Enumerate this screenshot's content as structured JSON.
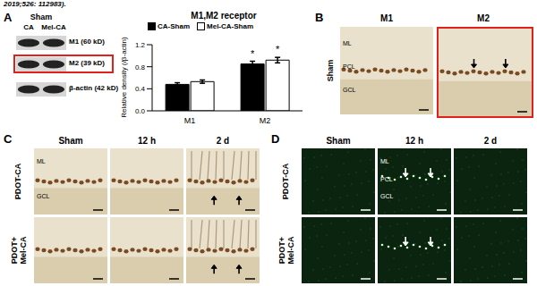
{
  "caption_fragment": "2019;526: 112983).",
  "panel_a": {
    "label": "A",
    "blot": {
      "group": "Sham",
      "lanes": [
        "CA",
        "Mel-CA"
      ],
      "bands": [
        "M1 (60 kD)",
        "M2 (39 kD)",
        "β-actin (42 kD)"
      ],
      "highlighted": "M2 (39 kD)"
    }
  },
  "chart_data": {
    "type": "bar",
    "title": "M1,M2 receptor",
    "y_label": "Relative density (/β-actin)",
    "categories": [
      "M1",
      "M2"
    ],
    "series": [
      {
        "name": "CA-Sham",
        "color": "#000000",
        "values": [
          0.48,
          0.85
        ],
        "errors": [
          0.03,
          0.05
        ]
      },
      {
        "name": "Mel-CA-Sham",
        "color": "#ffffff",
        "values": [
          0.53,
          0.92
        ],
        "errors": [
          0.03,
          0.05
        ]
      }
    ],
    "ylim": [
      0,
      1.2
    ],
    "yticks": [
      {
        "value": 0,
        "label": "0.0"
      },
      0.4,
      0.8,
      1.2
    ],
    "grid": false,
    "legend": "top",
    "annotations": [
      {
        "series": "CA-Sham",
        "category": "M2",
        "text": "*"
      },
      {
        "series": "Mel-CA-Sham",
        "category": "M2",
        "text": "*"
      }
    ]
  },
  "panel_b": {
    "label": "B",
    "row": "Sham",
    "columns": [
      "M1",
      "M2"
    ],
    "highlighted": "M2",
    "layer_labels": [
      "ML",
      "PCL",
      "GCL"
    ]
  },
  "panel_c": {
    "label": "C",
    "columns": [
      "Sham",
      "12 h",
      "2 d"
    ],
    "rows": [
      [
        "PDOT-CA"
      ],
      [
        "PDOT+",
        "Mel-CA"
      ]
    ],
    "layer_labels": [
      "ML",
      "GCL"
    ]
  },
  "panel_d": {
    "label": "D",
    "columns": [
      "Sham",
      "12 h",
      "2 d"
    ],
    "rows": [
      [
        "PDOT-CA"
      ],
      [
        "PDOT+",
        "Mel-CA"
      ]
    ],
    "layer_labels": [
      "ML",
      "PCL",
      "GCL"
    ]
  }
}
